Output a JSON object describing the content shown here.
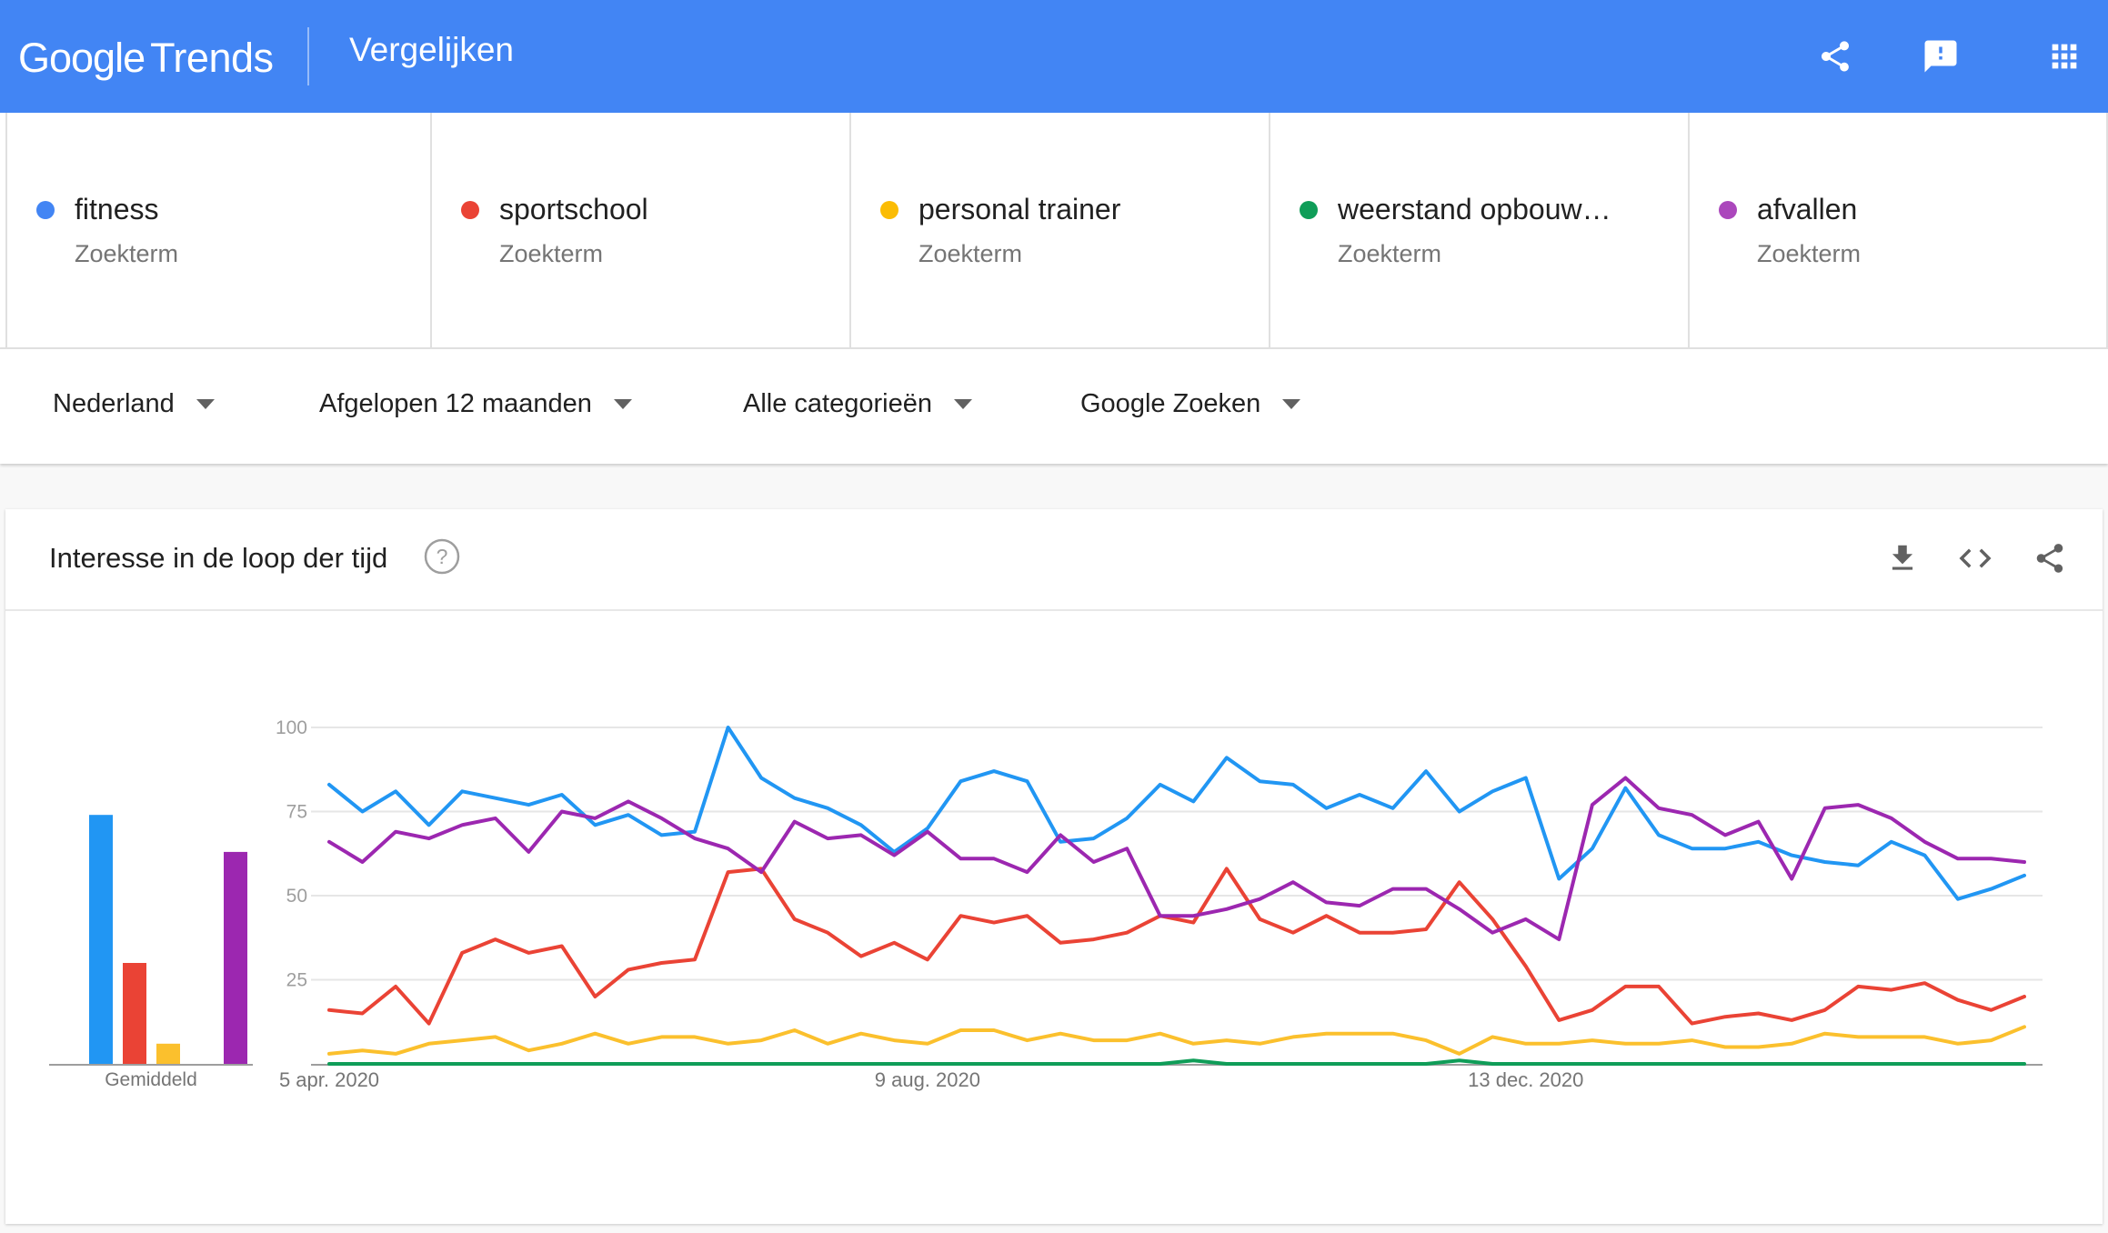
{
  "header": {
    "logo_google": "Google",
    "logo_trends": "Trends",
    "title": "Vergelijken",
    "icons": [
      "share-icon",
      "feedback-icon",
      "apps-grid-icon"
    ]
  },
  "terms": [
    {
      "name": "fitness",
      "type": "Zoekterm",
      "color": "#4285f4"
    },
    {
      "name": "sportschool",
      "type": "Zoekterm",
      "color": "#ea4335"
    },
    {
      "name": "personal trainer",
      "type": "Zoekterm",
      "color": "#fbbc04"
    },
    {
      "name": "weerstand opbouw…",
      "type": "Zoekterm",
      "color": "#0f9d58"
    },
    {
      "name": "afvallen",
      "type": "Zoekterm",
      "color": "#ab47bc"
    }
  ],
  "filters": {
    "region": "Nederland",
    "period": "Afgelopen 12 maanden",
    "category": "Alle categorieën",
    "property": "Google Zoeken"
  },
  "card": {
    "title": "Interesse in de loop der tijd",
    "icons": [
      "help-icon",
      "download-icon",
      "embed-icon",
      "share-icon"
    ]
  },
  "chart_data": [
    {
      "type": "bar",
      "xlabel": "Gemiddeld",
      "ylim": [
        0,
        100
      ],
      "categories": [
        "fitness",
        "sportschool",
        "personal trainer",
        "weerstand opbouw…",
        "afvallen"
      ],
      "values": [
        74,
        30,
        6,
        0,
        63
      ],
      "colors": [
        "#2196f3",
        "#ea4335",
        "#fbc02d",
        "#0f9d58",
        "#9c27b0"
      ]
    },
    {
      "type": "line",
      "ylim": [
        0,
        100
      ],
      "yticks": [
        25,
        50,
        75,
        100
      ],
      "xtick_labels": [
        {
          "label": "5 apr. 2020",
          "index": 0
        },
        {
          "label": "9 aug. 2020",
          "index": 18
        },
        {
          "label": "13 dec. 2020",
          "index": 36
        }
      ],
      "grid": true,
      "series": [
        {
          "name": "fitness",
          "color": "#2196f3",
          "values": [
            83,
            75,
            81,
            71,
            81,
            79,
            77,
            80,
            71,
            74,
            68,
            69,
            100,
            85,
            79,
            76,
            71,
            63,
            70,
            84,
            87,
            84,
            66,
            67,
            73,
            83,
            78,
            91,
            84,
            83,
            76,
            80,
            76,
            87,
            75,
            81,
            85,
            55,
            64,
            82,
            68,
            64,
            64,
            66,
            62,
            60,
            59,
            66,
            62,
            49,
            52,
            56
          ]
        },
        {
          "name": "sportschool",
          "color": "#ea4335",
          "values": [
            16,
            15,
            23,
            12,
            33,
            37,
            33,
            35,
            20,
            28,
            30,
            31,
            57,
            58,
            43,
            39,
            32,
            36,
            31,
            44,
            42,
            44,
            36,
            37,
            39,
            44,
            42,
            58,
            43,
            39,
            44,
            39,
            39,
            40,
            54,
            43,
            29,
            13,
            16,
            23,
            23,
            12,
            14,
            15,
            13,
            16,
            23,
            22,
            24,
            19,
            16,
            20
          ]
        },
        {
          "name": "personal trainer",
          "color": "#fbc02d",
          "values": [
            3,
            4,
            3,
            6,
            7,
            8,
            4,
            6,
            9,
            6,
            8,
            8,
            6,
            7,
            10,
            6,
            9,
            7,
            6,
            10,
            10,
            7,
            9,
            7,
            7,
            9,
            6,
            7,
            6,
            8,
            9,
            9,
            9,
            7,
            3,
            8,
            6,
            6,
            7,
            6,
            6,
            7,
            5,
            5,
            6,
            9,
            8,
            8,
            8,
            6,
            7,
            11
          ]
        },
        {
          "name": "weerstand opbouw…",
          "color": "#0f9d58",
          "values": [
            0,
            0,
            0,
            0,
            0,
            0,
            0,
            0,
            0,
            0,
            0,
            0,
            0,
            0,
            0,
            0,
            0,
            0,
            0,
            0,
            0,
            0,
            0,
            0,
            0,
            0,
            1,
            0,
            0,
            0,
            0,
            0,
            0,
            0,
            1,
            0,
            0,
            0,
            0,
            0,
            0,
            0,
            0,
            0,
            0,
            0,
            0,
            0,
            0,
            0,
            0,
            0
          ]
        },
        {
          "name": "afvallen",
          "color": "#9c27b0",
          "values": [
            66,
            60,
            69,
            67,
            71,
            73,
            63,
            75,
            73,
            78,
            73,
            67,
            64,
            57,
            72,
            67,
            68,
            62,
            69,
            61,
            61,
            57,
            68,
            60,
            64,
            44,
            44,
            46,
            49,
            54,
            48,
            47,
            52,
            52,
            46,
            39,
            43,
            37,
            77,
            85,
            76,
            74,
            68,
            72,
            55,
            76,
            77,
            73,
            66,
            61,
            61,
            60
          ]
        }
      ]
    }
  ]
}
